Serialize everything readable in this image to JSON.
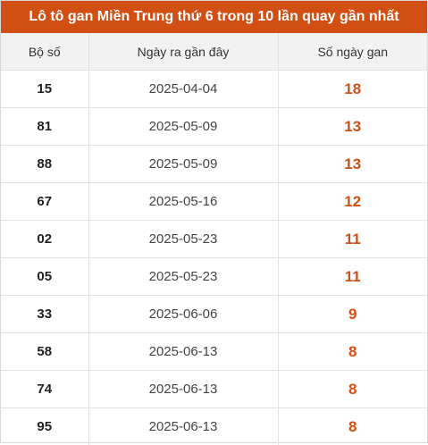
{
  "title": "Lô tô gan Miền Trung thứ 6 trong 10 lần quay gần nhất",
  "columns": {
    "number": "Bộ số",
    "last_date": "Ngày ra gần đây",
    "days_gan": "Số ngày gan"
  },
  "rows": [
    {
      "number": "15",
      "date": "2025-04-04",
      "gan": "18"
    },
    {
      "number": "81",
      "date": "2025-05-09",
      "gan": "13"
    },
    {
      "number": "88",
      "date": "2025-05-09",
      "gan": "13"
    },
    {
      "number": "67",
      "date": "2025-05-16",
      "gan": "12"
    },
    {
      "number": "02",
      "date": "2025-05-23",
      "gan": "11"
    },
    {
      "number": "05",
      "date": "2025-05-23",
      "gan": "11"
    },
    {
      "number": "33",
      "date": "2025-06-06",
      "gan": "9"
    },
    {
      "number": "58",
      "date": "2025-06-13",
      "gan": "8"
    },
    {
      "number": "74",
      "date": "2025-06-13",
      "gan": "8"
    },
    {
      "number": "95",
      "date": "2025-06-13",
      "gan": "8"
    }
  ],
  "colors": {
    "accent": "#d24f14",
    "header_bg": "#f2f2f2"
  }
}
